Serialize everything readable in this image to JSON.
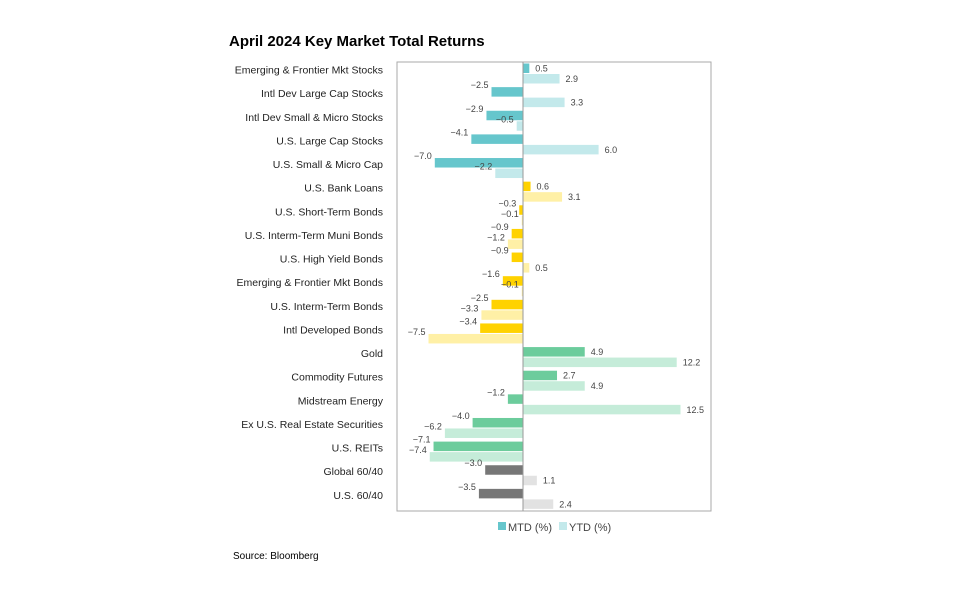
{
  "chart_data": {
    "type": "bar",
    "orientation": "horizontal",
    "title": "April 2024 Key Market Total Returns",
    "source": "Source: Bloomberg",
    "xlim": [
      -10,
      15
    ],
    "grid": false,
    "legend_position": "bottom",
    "categories": [
      "Emerging & Frontier Mkt Stocks",
      "Intl Dev Large Cap Stocks",
      "Intl Dev Small & Micro Stocks",
      "U.S. Large Cap Stocks",
      "U.S. Small & Micro Cap",
      "U.S. Bank Loans",
      "U.S. Short-Term Bonds",
      "U.S. Interm-Term Muni Bonds",
      "U.S. High Yield Bonds",
      "Emerging & Frontier Mkt Bonds",
      "U.S. Interm-Term Bonds",
      "Intl Developed Bonds",
      "Gold",
      "Commodity Futures",
      "Midstream Energy",
      "Ex U.S. Real Estate Securities",
      "U.S. REITs",
      "Global 60/40",
      "U.S. 60/40"
    ],
    "groups": [
      0,
      0,
      0,
      0,
      0,
      1,
      1,
      1,
      1,
      1,
      1,
      1,
      2,
      2,
      2,
      2,
      2,
      3,
      3
    ],
    "series": [
      {
        "name": "MTD (%)",
        "values": [
          0.5,
          -2.5,
          -2.9,
          -4.1,
          -7.0,
          0.6,
          -0.3,
          -0.9,
          -0.9,
          -1.6,
          -2.5,
          -3.4,
          4.9,
          2.7,
          -1.2,
          -4.0,
          -7.1,
          -3.0,
          -3.5
        ]
      },
      {
        "name": "YTD (%)",
        "values": [
          2.9,
          3.3,
          -0.5,
          6.0,
          -2.2,
          3.1,
          -0.1,
          -1.2,
          0.5,
          -0.1,
          -3.3,
          -7.5,
          12.2,
          4.9,
          12.5,
          -6.2,
          -7.4,
          1.1,
          2.4
        ]
      }
    ],
    "colors": {
      "mtd": [
        "#66c6cc",
        "#ffd200",
        "#6ccc9c",
        "#777777"
      ],
      "ytd": [
        "#c3e9eb",
        "#fff0a6",
        "#c5ecd9",
        "#e2e2e2"
      ]
    }
  }
}
